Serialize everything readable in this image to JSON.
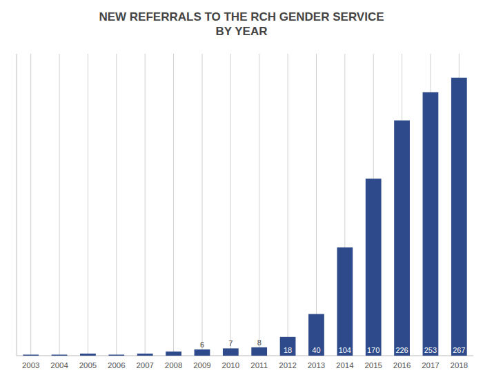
{
  "chart_data": {
    "type": "bar",
    "title": "NEW REFERRALS TO THE RCH GENDER SERVICE\nBY YEAR",
    "categories": [
      "2003",
      "2004",
      "2005",
      "2006",
      "2007",
      "2008",
      "2009",
      "2010",
      "2011",
      "2012",
      "2013",
      "2014",
      "2015",
      "2016",
      "2017",
      "2018"
    ],
    "values": [
      1,
      1,
      2,
      1,
      2,
      4,
      6,
      7,
      8,
      18,
      40,
      104,
      170,
      226,
      253,
      267
    ],
    "value_labels": [
      null,
      null,
      null,
      null,
      null,
      null,
      "6",
      "7",
      "8",
      "18",
      "40",
      "104",
      "170",
      "226",
      "253",
      "267"
    ],
    "data_labels": true,
    "color": "#2e4a8a",
    "ylim": [
      0,
      290
    ],
    "grid": true,
    "tick_labels": "x"
  }
}
